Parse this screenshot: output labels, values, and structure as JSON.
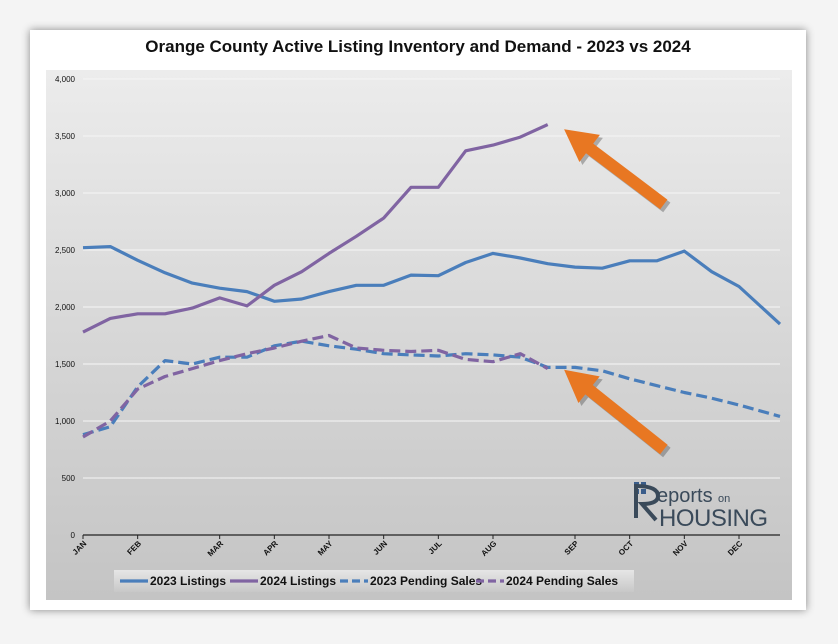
{
  "chart_data": {
    "type": "line",
    "title": "Orange County Active Listing Inventory and Demand - 2023 vs 2024",
    "xlabel": "",
    "ylabel": "",
    "ylim": [
      0,
      4000
    ],
    "yticks": [
      "0",
      "500",
      "1,000",
      "1,500",
      "2,000",
      "2,500",
      "3,000",
      "3,500",
      "4,000"
    ],
    "ytick_values": [
      0,
      500,
      1000,
      1500,
      2000,
      2500,
      3000,
      3500,
      4000
    ],
    "xlim": [
      0,
      51
    ],
    "months": [
      {
        "label": "JAN",
        "week": 0
      },
      {
        "label": "FEB",
        "week": 4
      },
      {
        "label": "MAR",
        "week": 10
      },
      {
        "label": "APR",
        "week": 14
      },
      {
        "label": "MAY",
        "week": 18
      },
      {
        "label": "JUN",
        "week": 22
      },
      {
        "label": "JUL",
        "week": 26
      },
      {
        "label": "AUG",
        "week": 30
      },
      {
        "label": "SEP",
        "week": 36
      },
      {
        "label": "OCT",
        "week": 40
      },
      {
        "label": "NOV",
        "week": 44
      },
      {
        "label": "DEC",
        "week": 48
      }
    ],
    "grid": true,
    "legend_position": "bottom",
    "series": [
      {
        "name": "2023 Listings",
        "color": "#4a7ebb",
        "dashed": false,
        "x": [
          0,
          2,
          4,
          6,
          8,
          10,
          12,
          14,
          16,
          18,
          20,
          22,
          24,
          26,
          28,
          30,
          32,
          34,
          36,
          38,
          40,
          42,
          44,
          46,
          48,
          51
        ],
        "values": [
          2520,
          2530,
          2410,
          2300,
          2210,
          2165,
          2135,
          2050,
          2070,
          2135,
          2190,
          2190,
          2280,
          2275,
          2390,
          2470,
          2430,
          2380,
          2350,
          2340,
          2405,
          2405,
          2490,
          2310,
          2180,
          1850
        ]
      },
      {
        "name": "2024 Listings",
        "color": "#8064a2",
        "dashed": false,
        "x": [
          0,
          2,
          4,
          6,
          8,
          10,
          12,
          14,
          16,
          18,
          20,
          22,
          24,
          26,
          28,
          30,
          32,
          34
        ],
        "values": [
          1780,
          1900,
          1940,
          1940,
          1990,
          2080,
          2010,
          2190,
          2310,
          2470,
          2620,
          2780,
          3050,
          3050,
          3370,
          3420,
          3490,
          3600
        ]
      },
      {
        "name": "2023 Pending Sales",
        "color": "#4a7ebb",
        "dashed": true,
        "x": [
          0,
          2,
          4,
          6,
          8,
          10,
          12,
          14,
          16,
          18,
          20,
          22,
          24,
          26,
          28,
          30,
          32,
          34,
          36,
          38,
          40,
          42,
          44,
          46,
          48,
          51
        ],
        "values": [
          880,
          950,
          1300,
          1530,
          1500,
          1560,
          1560,
          1660,
          1700,
          1660,
          1630,
          1590,
          1580,
          1570,
          1590,
          1580,
          1560,
          1470,
          1470,
          1440,
          1370,
          1310,
          1250,
          1200,
          1140,
          1040
        ]
      },
      {
        "name": "2024 Pending Sales",
        "color": "#8064a2",
        "dashed": true,
        "x": [
          0,
          2,
          4,
          6,
          8,
          10,
          12,
          14,
          16,
          18,
          20,
          22,
          24,
          26,
          28,
          30,
          32,
          34
        ],
        "values": [
          860,
          1000,
          1280,
          1390,
          1460,
          1530,
          1590,
          1640,
          1700,
          1750,
          1640,
          1620,
          1610,
          1620,
          1540,
          1520,
          1590,
          1460
        ]
      }
    ],
    "arrows": [
      {
        "from": [
          42.5,
          2900
        ],
        "to": [
          35.2,
          3560
        ],
        "color": "#e87722"
      },
      {
        "from": [
          42.5,
          750
        ],
        "to": [
          35.2,
          1450
        ],
        "color": "#e87722"
      }
    ]
  },
  "logo": {
    "line1": "eports",
    "line1_small": "on",
    "line2": "HOUSING"
  }
}
